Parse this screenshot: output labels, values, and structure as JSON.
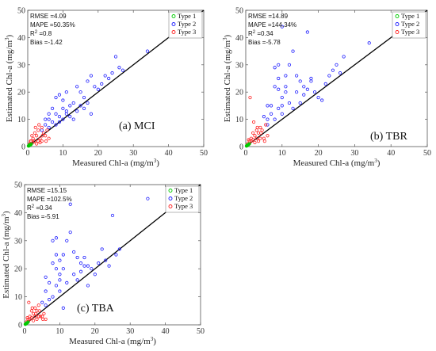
{
  "legend": [
    {
      "label": "Type 1",
      "color": "#00cc00"
    },
    {
      "label": "Type 2",
      "color": "#1a1aff"
    },
    {
      "label": "Type 3",
      "color": "#ff2020"
    }
  ],
  "ylabel_main": "Estimated Chl-a (mg/m",
  "xlabel_main": "Measured Chl-a (mg/m",
  "unit_sup": "3",
  "unit_close": ")",
  "chart_data": [
    {
      "type": "scatter",
      "panel_label": "(a) MCI",
      "xlim": [
        0,
        50
      ],
      "ylim": [
        0,
        50
      ],
      "xticks": [
        0,
        10,
        20,
        30,
        40,
        50
      ],
      "yticks": [
        0,
        10,
        20,
        30,
        40,
        50
      ],
      "one_to_one_line": true,
      "stats": {
        "rmse": "RMSE =4.09",
        "mape": "MAPE =50.35%",
        "r2_prefix": "R",
        "r2_sup": "2",
        "r2_value": " =0.8",
        "bias": "Bias =-1.42"
      },
      "series": [
        {
          "name": "Type 1",
          "color": "#00cc00",
          "points": [
            [
              0.2,
              0.2
            ],
            [
              0.4,
              0.3
            ],
            [
              0.6,
              0.5
            ],
            [
              0.8,
              0.7
            ],
            [
              1.0,
              0.9
            ],
            [
              0.5,
              0.6
            ],
            [
              0.3,
              0.4
            ],
            [
              0.7,
              0.8
            ]
          ]
        },
        {
          "name": "Type 2",
          "color": "#1a1aff",
          "points": [
            [
              6,
              10
            ],
            [
              7,
              9
            ],
            [
              8,
              12
            ],
            [
              9,
              11
            ],
            [
              10,
              14
            ],
            [
              11,
              13
            ],
            [
              12,
              15
            ],
            [
              13,
              16
            ],
            [
              14,
              22
            ],
            [
              15,
              20
            ],
            [
              16,
              18
            ],
            [
              17,
              24
            ],
            [
              18,
              26
            ],
            [
              19,
              22
            ],
            [
              20,
              21
            ],
            [
              21,
              23
            ],
            [
              22,
              26
            ],
            [
              23,
              25
            ],
            [
              24,
              27
            ],
            [
              25,
              33
            ],
            [
              26,
              29
            ],
            [
              27,
              28
            ],
            [
              34,
              35
            ],
            [
              8,
              18
            ],
            [
              9,
              19
            ],
            [
              10,
              17
            ],
            [
              11,
              12
            ],
            [
              12,
              11
            ],
            [
              13,
              10
            ],
            [
              6,
              12
            ],
            [
              7,
              14
            ],
            [
              8,
              8
            ],
            [
              9,
              9
            ],
            [
              10,
              10
            ],
            [
              5,
              10
            ],
            [
              6,
              7
            ],
            [
              14,
              13
            ],
            [
              15,
              15
            ],
            [
              16,
              14
            ],
            [
              17,
              16
            ],
            [
              18,
              12
            ],
            [
              4,
              6
            ],
            [
              5,
              8
            ],
            [
              11,
              20
            ]
          ]
        },
        {
          "name": "Type 3",
          "color": "#ff2020",
          "points": [
            [
              1,
              2
            ],
            [
              1.5,
              3
            ],
            [
              2,
              5
            ],
            [
              2.5,
              4
            ],
            [
              3,
              6
            ],
            [
              3.5,
              3
            ],
            [
              4,
              7
            ],
            [
              4.5,
              5
            ],
            [
              5,
              4
            ],
            [
              5.5,
              6
            ],
            [
              6,
              3
            ],
            [
              1,
              1
            ],
            [
              1.5,
              1.5
            ],
            [
              2,
              2
            ],
            [
              2.5,
              1
            ],
            [
              3,
              2
            ],
            [
              3.5,
              1.5
            ],
            [
              4,
              2
            ],
            [
              0.5,
              1
            ],
            [
              0.8,
              2
            ],
            [
              1.2,
              4
            ],
            [
              2.2,
              7
            ],
            [
              3.2,
              8
            ],
            [
              4.2,
              4
            ],
            [
              5.2,
              2
            ]
          ]
        }
      ]
    },
    {
      "type": "scatter",
      "panel_label": "(b) TBR",
      "xlim": [
        0,
        50
      ],
      "ylim": [
        0,
        50
      ],
      "xticks": [
        0,
        10,
        20,
        30,
        40,
        50
      ],
      "yticks": [
        0,
        10,
        20,
        30,
        40,
        50
      ],
      "one_to_one_line": true,
      "stats": {
        "rmse": "RMSE =14.89",
        "mape": "MAPE =144.34%",
        "r2_prefix": "R",
        "r2_sup": "2",
        "r2_value": " =0.34",
        "bias": "Bias =-5.78"
      },
      "series": [
        {
          "name": "Type 1",
          "color": "#00cc00",
          "points": [
            [
              0.2,
              0.2
            ],
            [
              0.4,
              0.4
            ],
            [
              0.6,
              0.6
            ],
            [
              0.8,
              0.8
            ],
            [
              1.0,
              1.0
            ],
            [
              0.5,
              0.5
            ],
            [
              0.3,
              0.3
            ],
            [
              0.7,
              0.7
            ]
          ]
        },
        {
          "name": "Type 2",
          "color": "#1a1aff",
          "points": [
            [
              6,
              10
            ],
            [
              7,
              15
            ],
            [
              8,
              22
            ],
            [
              9,
              25
            ],
            [
              10,
              18
            ],
            [
              11,
              20
            ],
            [
              12,
              30
            ],
            [
              13,
              35
            ],
            [
              14,
              26
            ],
            [
              15,
              24
            ],
            [
              16,
              22
            ],
            [
              17,
              42
            ],
            [
              18,
              25
            ],
            [
              19,
              20
            ],
            [
              20,
              18
            ],
            [
              21,
              17
            ],
            [
              22,
              23
            ],
            [
              23,
              26
            ],
            [
              24,
              28
            ],
            [
              25,
              30
            ],
            [
              26,
              27
            ],
            [
              27,
              33
            ],
            [
              34,
              38
            ],
            [
              8,
              29
            ],
            [
              9,
              30
            ],
            [
              10,
              44
            ],
            [
              11,
              26
            ],
            [
              12,
              16
            ],
            [
              13,
              14
            ],
            [
              6,
              15
            ],
            [
              7,
              12
            ],
            [
              8,
              10
            ],
            [
              9,
              14
            ],
            [
              10,
              12
            ],
            [
              5,
              11
            ],
            [
              6,
              8
            ],
            [
              14,
              20
            ],
            [
              15,
              16
            ],
            [
              16,
              19
            ],
            [
              17,
              21
            ],
            [
              18,
              24
            ],
            [
              9,
              21
            ],
            [
              10,
              15
            ],
            [
              11,
              22
            ]
          ]
        },
        {
          "name": "Type 3",
          "color": "#ff2020",
          "points": [
            [
              1,
              2
            ],
            [
              1.5,
              3
            ],
            [
              2,
              5
            ],
            [
              2.5,
              4
            ],
            [
              3,
              6
            ],
            [
              3.5,
              5
            ],
            [
              4,
              7
            ],
            [
              4.5,
              6
            ],
            [
              5,
              3
            ],
            [
              5.5,
              8
            ],
            [
              6,
              4
            ],
            [
              1,
              1
            ],
            [
              1.5,
              2
            ],
            [
              2,
              2.5
            ],
            [
              2.5,
              1.5
            ],
            [
              3,
              3
            ],
            [
              3.5,
              2
            ],
            [
              4,
              3
            ],
            [
              0.5,
              1
            ],
            [
              0.8,
              2.5
            ],
            [
              1.2,
              18
            ],
            [
              2.2,
              9
            ],
            [
              3.2,
              7
            ],
            [
              4.2,
              5
            ],
            [
              5.2,
              2
            ]
          ]
        }
      ]
    },
    {
      "type": "scatter",
      "panel_label": "(c) TBA",
      "xlim": [
        0,
        50
      ],
      "ylim": [
        0,
        50
      ],
      "xticks": [
        0,
        10,
        20,
        30,
        40,
        50
      ],
      "yticks": [
        0,
        10,
        20,
        30,
        40,
        50
      ],
      "one_to_one_line": true,
      "stats": {
        "rmse": "RMSE =15.15",
        "mape": "MAPE =102.5%",
        "r2_prefix": "R",
        "r2_sup": "2",
        "r2_value": " =0.34",
        "bias": "Bias =-5.91"
      },
      "series": [
        {
          "name": "Type 1",
          "color": "#00cc00",
          "points": [
            [
              0.2,
              0.2
            ],
            [
              0.4,
              0.4
            ],
            [
              0.6,
              0.6
            ],
            [
              0.8,
              0.8
            ],
            [
              1.0,
              1.0
            ],
            [
              0.5,
              0.5
            ],
            [
              0.3,
              0.3
            ],
            [
              0.7,
              0.7
            ]
          ]
        },
        {
          "name": "Type 2",
          "color": "#1a1aff",
          "points": [
            [
              6,
              12
            ],
            [
              7,
              15
            ],
            [
              8,
              22
            ],
            [
              9,
              25
            ],
            [
              10,
              18
            ],
            [
              11,
              20
            ],
            [
              12,
              30
            ],
            [
              13,
              33
            ],
            [
              14,
              26
            ],
            [
              15,
              24
            ],
            [
              16,
              22
            ],
            [
              17,
              24
            ],
            [
              18,
              21
            ],
            [
              19,
              20
            ],
            [
              20,
              18
            ],
            [
              21,
              22
            ],
            [
              22,
              27
            ],
            [
              23,
              23
            ],
            [
              24,
              21
            ],
            [
              25,
              39
            ],
            [
              26,
              25
            ],
            [
              27,
              27
            ],
            [
              35,
              45
            ],
            [
              8,
              30
            ],
            [
              9,
              31
            ],
            [
              10,
              23
            ],
            [
              11,
              25
            ],
            [
              12,
              15
            ],
            [
              13,
              43
            ],
            [
              6,
              17
            ],
            [
              7,
              9
            ],
            [
              8,
              10
            ],
            [
              9,
              14
            ],
            [
              10,
              12
            ],
            [
              5,
              8
            ],
            [
              6,
              7
            ],
            [
              14,
              18
            ],
            [
              15,
              16
            ],
            [
              16,
              19
            ],
            [
              17,
              21
            ],
            [
              18,
              14
            ],
            [
              9,
              20
            ],
            [
              10,
              16
            ],
            [
              11,
              6
            ]
          ]
        },
        {
          "name": "Type 3",
          "color": "#ff2020",
          "points": [
            [
              1,
              2
            ],
            [
              1.5,
              3
            ],
            [
              2,
              5
            ],
            [
              2.5,
              4
            ],
            [
              3,
              6
            ],
            [
              3.5,
              5
            ],
            [
              4,
              7
            ],
            [
              4.5,
              3
            ],
            [
              5,
              3
            ],
            [
              5.5,
              4
            ],
            [
              6,
              2
            ],
            [
              1,
              1
            ],
            [
              1.5,
              2
            ],
            [
              2,
              2.5
            ],
            [
              2.5,
              1.5
            ],
            [
              3,
              3
            ],
            [
              3.5,
              2
            ],
            [
              4,
              3
            ],
            [
              0.5,
              1
            ],
            [
              0.8,
              2.5
            ],
            [
              1.2,
              8
            ],
            [
              2.2,
              6
            ],
            [
              3.2,
              4
            ],
            [
              4.2,
              5
            ],
            [
              5.2,
              2
            ]
          ]
        }
      ]
    }
  ]
}
